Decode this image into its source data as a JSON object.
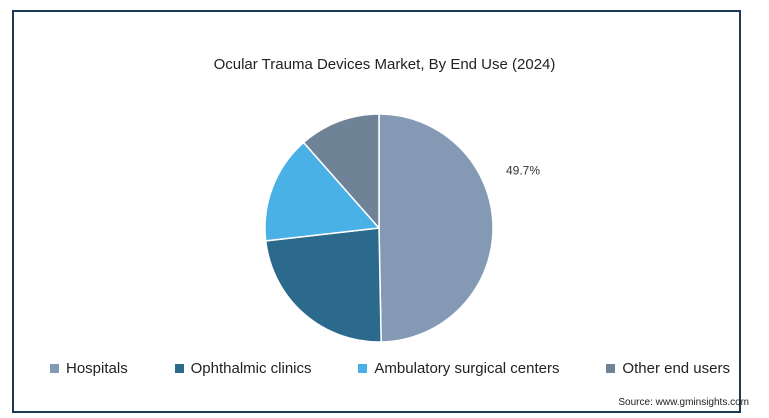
{
  "chart_data": {
    "type": "pie",
    "title": "Ocular Trauma Devices Market, By End Use (2024)",
    "series": [
      {
        "name": "Hospitals",
        "value": 49.7,
        "color": "#8499b4",
        "label": "49.7%"
      },
      {
        "name": "Ophthalmic clinics",
        "value": 23.5,
        "color": "#2b6a8c",
        "label": ""
      },
      {
        "name": "Ambulatory surgical centers",
        "value": 15.3,
        "color": "#49b1e5",
        "label": ""
      },
      {
        "name": "Other end users",
        "value": 11.5,
        "color": "#6e8396",
        "label": ""
      }
    ],
    "start_angle_deg": 0,
    "direction": "clockwise",
    "legend_position": "bottom"
  },
  "source": "Source: www.gminsights.com"
}
